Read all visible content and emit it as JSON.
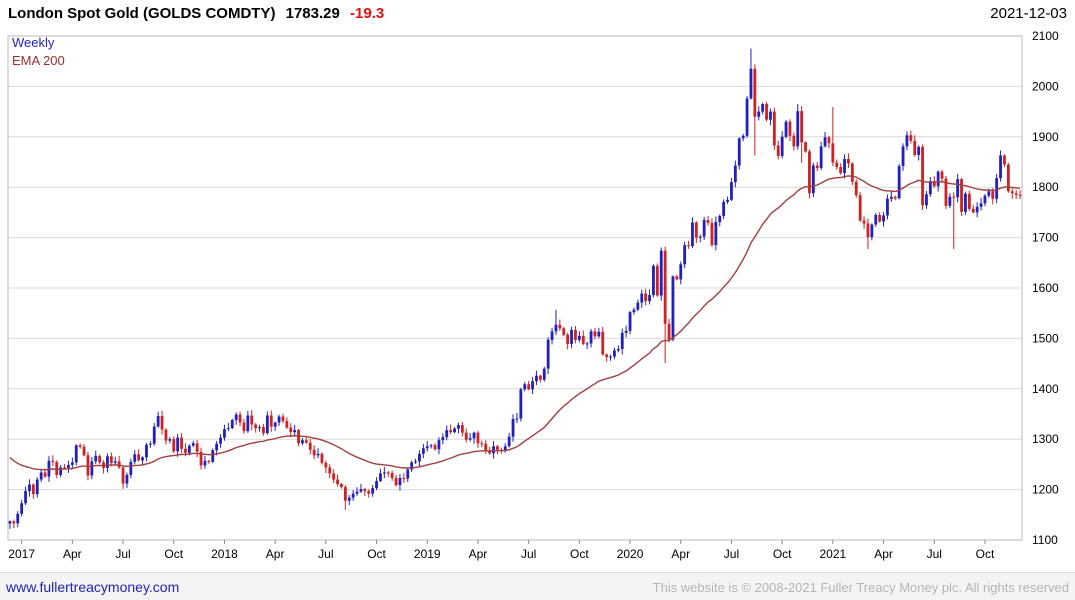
{
  "header": {
    "title": "London Spot Gold (GOLDS COMDTY)",
    "last_price": "1783.29",
    "change": "-19.3",
    "date": "2021-12-03"
  },
  "legend": {
    "timeframe": "Weekly",
    "overlay": "EMA 200"
  },
  "footer": {
    "site_link": "www.fullertreacymoney.com",
    "copyright": "This website is © 2008-2021 Fuller Treacy Money plc. All rights reserved"
  },
  "colors": {
    "up": "#2020c0",
    "down": "#d02020",
    "ema_line": "#a04040",
    "grid": "#d9d9d9",
    "border": "#bbbbbb",
    "axis_text": "#000000",
    "change_text": "#e01010",
    "timeframe_text": "#2222cc"
  },
  "chart_data": {
    "type": "candlestick",
    "title": "London Spot Gold (GOLDS COMDTY)",
    "timeframe": "Weekly",
    "overlay": "EMA 200",
    "x": "weekly closes, 2016-12-16 to 2021-12-03",
    "ylim": [
      1100,
      2100
    ],
    "y_ticks": [
      1100,
      1200,
      1300,
      1400,
      1500,
      1600,
      1700,
      1800,
      1900,
      2000,
      2100
    ],
    "x_ticks": [
      {
        "i": 3,
        "label": "2017"
      },
      {
        "i": 16,
        "label": "Apr"
      },
      {
        "i": 29,
        "label": "Jul"
      },
      {
        "i": 42,
        "label": "Oct"
      },
      {
        "i": 55,
        "label": "2018"
      },
      {
        "i": 68,
        "label": "Apr"
      },
      {
        "i": 81,
        "label": "Jul"
      },
      {
        "i": 94,
        "label": "Oct"
      },
      {
        "i": 107,
        "label": "2019"
      },
      {
        "i": 120,
        "label": "Apr"
      },
      {
        "i": 133,
        "label": "Jul"
      },
      {
        "i": 146,
        "label": "Oct"
      },
      {
        "i": 159,
        "label": "2020"
      },
      {
        "i": 172,
        "label": "Apr"
      },
      {
        "i": 185,
        "label": "Jul"
      },
      {
        "i": 198,
        "label": "Oct"
      },
      {
        "i": 211,
        "label": "2021"
      },
      {
        "i": 224,
        "label": "Apr"
      },
      {
        "i": 237,
        "label": "Jul"
      },
      {
        "i": 250,
        "label": "Oct"
      }
    ],
    "weekly_closes": [
      1137,
      1133,
      1152,
      1173,
      1197,
      1210,
      1191,
      1220,
      1234,
      1226,
      1257,
      1255,
      1229,
      1244,
      1243,
      1249,
      1254,
      1288,
      1285,
      1268,
      1228,
      1256,
      1267,
      1254,
      1243,
      1266,
      1253,
      1256,
      1244,
      1212,
      1229,
      1255,
      1270,
      1258,
      1264,
      1289,
      1291,
      1325,
      1346,
      1319,
      1297,
      1300,
      1276,
      1303,
      1281,
      1273,
      1287,
      1292,
      1275,
      1248,
      1257,
      1255,
      1278,
      1291,
      1303,
      1320,
      1322,
      1338,
      1349,
      1333,
      1316,
      1347,
      1329,
      1322,
      1324,
      1312,
      1347,
      1325,
      1333,
      1345,
      1336,
      1323,
      1314,
      1318,
      1292,
      1298,
      1293,
      1279,
      1268,
      1271,
      1253,
      1244,
      1232,
      1220,
      1211,
      1205,
      1178,
      1184,
      1192,
      1196,
      1201,
      1197,
      1192,
      1203,
      1217,
      1232,
      1234,
      1233,
      1223,
      1209,
      1223,
      1222,
      1240,
      1254,
      1256,
      1271,
      1282,
      1286,
      1288,
      1280,
      1298,
      1304,
      1318,
      1314,
      1321,
      1328,
      1313,
      1299,
      1302,
      1313,
      1292,
      1291,
      1276,
      1272,
      1286,
      1279,
      1278,
      1286,
      1305,
      1340,
      1341,
      1399,
      1409,
      1399,
      1415,
      1426,
      1418,
      1440,
      1497,
      1514,
      1527,
      1520,
      1507,
      1489,
      1517,
      1497,
      1505,
      1489,
      1490,
      1514,
      1504,
      1513,
      1468,
      1463,
      1464,
      1476,
      1479,
      1511,
      1515,
      1552,
      1557,
      1571,
      1589,
      1574,
      1586,
      1644,
      1585,
      1674,
      1529,
      1498,
      1623,
      1617,
      1647,
      1685,
      1683,
      1730,
      1700,
      1702,
      1735,
      1729,
      1685,
      1731,
      1743,
      1771,
      1775,
      1810,
      1843,
      1897,
      1902,
      1976,
      2035,
      1940,
      1950,
      1965,
      1934,
      1950,
      1883,
      1862,
      1900,
      1930,
      1902,
      1881,
      1951,
      1889,
      1871,
      1788,
      1843,
      1838,
      1881,
      1899,
      1887,
      1849,
      1840,
      1828,
      1856,
      1847,
      1811,
      1784,
      1734,
      1728,
      1701,
      1726,
      1745,
      1732,
      1744,
      1777,
      1781,
      1778,
      1842,
      1881,
      1903,
      1892,
      1864,
      1880,
      1764,
      1786,
      1812,
      1802,
      1831,
      1817,
      1763,
      1781,
      1780,
      1816,
      1751,
      1787,
      1757,
      1750,
      1761,
      1768,
      1783,
      1792,
      1777,
      1818,
      1863,
      1845,
      1792,
      1788,
      1785,
      1783
    ],
    "wick_overrides": {
      "0": [
        null,
        1122
      ],
      "86": [
        null,
        1160
      ],
      "140": [
        1557,
        null
      ],
      "168": [
        null,
        1451
      ],
      "190": [
        2075,
        null
      ],
      "191": [
        null,
        1863
      ],
      "202": [
        1965,
        null
      ],
      "203": [
        null,
        1848
      ],
      "211": [
        1959,
        null
      ],
      "220": [
        null,
        1677
      ],
      "242": [
        null,
        1677
      ]
    },
    "ema": {
      "label": "EMA 200",
      "period_weeks": 40,
      "seed": 1270
    },
    "last_value": 1783.29,
    "last_change": -19.3,
    "grid": "horizontal",
    "legend_position": "top-left"
  }
}
